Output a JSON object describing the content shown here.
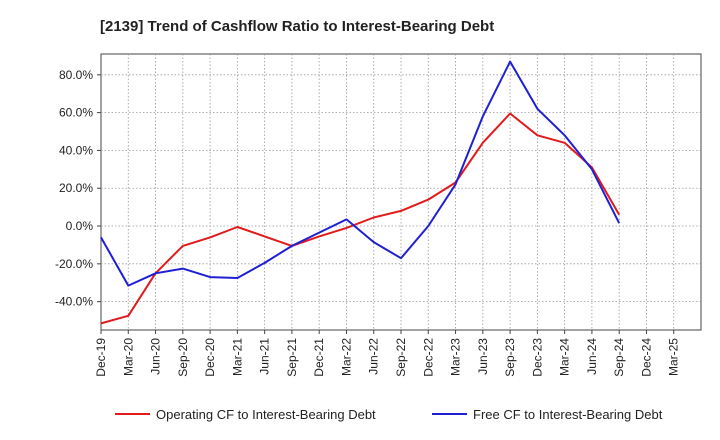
{
  "chart_data": {
    "type": "line",
    "title": "[2139]  Trend of Cashflow Ratio to Interest-Bearing Debt",
    "xlabel": "",
    "ylabel": "",
    "x_ticks": [
      "Dec-19",
      "Mar-20",
      "Jun-20",
      "Sep-20",
      "Dec-20",
      "Mar-21",
      "Jun-21",
      "Sep-21",
      "Dec-21",
      "Mar-22",
      "Jun-22",
      "Sep-22",
      "Dec-22",
      "Mar-23",
      "Jun-23",
      "Sep-23",
      "Dec-23",
      "Mar-24",
      "Jun-24",
      "Sep-24",
      "Dec-24",
      "Mar-25"
    ],
    "y_ticks": [
      "80.0%",
      "60.0%",
      "40.0%",
      "20.0%",
      "0.0%",
      "-20.0%",
      "-40.0%"
    ],
    "y_tick_values": [
      80,
      60,
      40,
      20,
      0,
      -20,
      -40
    ],
    "ylim": [
      -55,
      91
    ],
    "grid": true,
    "legend_position": "bottom",
    "series": [
      {
        "name": "Operating CF to Interest-Bearing Debt",
        "color": "#e31a1c",
        "values": [
          -51.5,
          -47.5,
          -25,
          -10.5,
          -6,
          -0.5,
          -5.5,
          -10.5,
          -5.5,
          -1,
          4.5,
          8,
          14,
          23,
          44,
          59.5,
          48,
          44,
          31,
          6,
          null,
          null
        ]
      },
      {
        "name": "Free CF to Interest-Bearing Debt",
        "color": "#1f1fd6",
        "values": [
          -6,
          -31.5,
          -25,
          -22.5,
          -27,
          -27.5,
          -19.5,
          -10.5,
          -3.5,
          3.5,
          -8.5,
          -17,
          0,
          22,
          58,
          87,
          62,
          48,
          30,
          1.5,
          null,
          null
        ]
      }
    ]
  }
}
